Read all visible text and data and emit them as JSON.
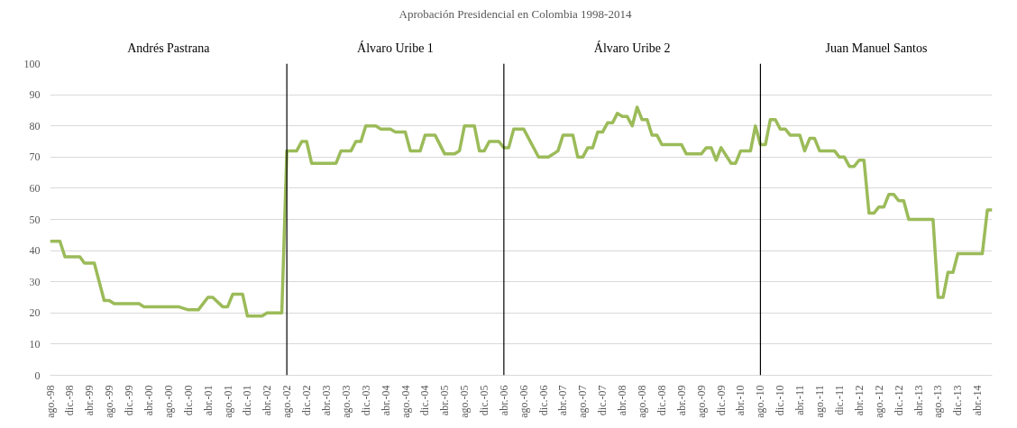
{
  "chart_data": {
    "type": "line",
    "title": "Aprobación  Presidencial  en  Colombia  1998-2014",
    "x": [
      "1998-08",
      "1998-10",
      "1998-11",
      "1999-02",
      "1999-03",
      "1999-05",
      "1999-07",
      "1999-08",
      "1999-09",
      "2000-02",
      "2000-03",
      "2000-10",
      "2000-12",
      "2001-02",
      "2001-04",
      "2001-05",
      "2001-07",
      "2001-08",
      "2001-09",
      "2001-11",
      "2001-12",
      "2002-03",
      "2002-04",
      "2002-07",
      "2002-08",
      "2002-10",
      "2002-11",
      "2002-12",
      "2003-01",
      "2003-06",
      "2003-07",
      "2003-09",
      "2003-10",
      "2003-11",
      "2003-12",
      "2004-02",
      "2004-03",
      "2004-05",
      "2004-06",
      "2004-08",
      "2004-09",
      "2004-11",
      "2004-12",
      "2005-02",
      "2005-04",
      "2005-06",
      "2005-07",
      "2005-08",
      "2005-10",
      "2005-11",
      "2005-12",
      "2006-01",
      "2006-03",
      "2006-04",
      "2006-05",
      "2006-06",
      "2006-08",
      "2006-11",
      "2007-01",
      "2007-02",
      "2007-03",
      "2007-04",
      "2007-06",
      "2007-07",
      "2007-08",
      "2007-09",
      "2007-10",
      "2007-11",
      "2007-12",
      "2008-01",
      "2008-02",
      "2008-03",
      "2008-04",
      "2008-05",
      "2008-06",
      "2008-07",
      "2008-08",
      "2008-09",
      "2008-10",
      "2008-11",
      "2008-12",
      "2009-04",
      "2009-05",
      "2009-08",
      "2009-09",
      "2009-10",
      "2009-11",
      "2009-12",
      "2010-02",
      "2010-03",
      "2010-04",
      "2010-06",
      "2010-07",
      "2010-08",
      "2010-09",
      "2010-10",
      "2010-11",
      "2010-12",
      "2011-01",
      "2011-02",
      "2011-04",
      "2011-05",
      "2011-06",
      "2011-07",
      "2011-08",
      "2011-11",
      "2011-12",
      "2012-01",
      "2012-02",
      "2012-03",
      "2012-04",
      "2012-05",
      "2012-06",
      "2012-07",
      "2012-08",
      "2012-09",
      "2012-10",
      "2012-11",
      "2012-12",
      "2013-01",
      "2013-02",
      "2013-07",
      "2013-08",
      "2013-09",
      "2013-10",
      "2013-11",
      "2013-12",
      "2014-05",
      "2014-06",
      "2014-07"
    ],
    "series": [
      {
        "color": "#9bbb59",
        "values": [
          43,
          43,
          38,
          38,
          36,
          36,
          24,
          24,
          23,
          23,
          22,
          22,
          21,
          21,
          25,
          25,
          22,
          22,
          26,
          26,
          19,
          19,
          20,
          20,
          72,
          72,
          75,
          75,
          68,
          68,
          72,
          72,
          75,
          75,
          80,
          80,
          79,
          79,
          78,
          78,
          72,
          72,
          77,
          77,
          71,
          71,
          72,
          80,
          80,
          72,
          72,
          75,
          75,
          73,
          73,
          79,
          79,
          70,
          70,
          71,
          72,
          77,
          77,
          70,
          70,
          73,
          73,
          78,
          78,
          81,
          81,
          84,
          83,
          83,
          80,
          86,
          82,
          82,
          77,
          77,
          74,
          74,
          71,
          71,
          73,
          73,
          69,
          73,
          68,
          68,
          72,
          72,
          80,
          74,
          74,
          82,
          82,
          79,
          79,
          77,
          77,
          72,
          76,
          76,
          72,
          72,
          70,
          70,
          67,
          67,
          69,
          69,
          52,
          52,
          54,
          54,
          58,
          58,
          56,
          56,
          50,
          50,
          25,
          25,
          33,
          33,
          39,
          39,
          53,
          53
        ]
      }
    ],
    "xlim": [
      "1998-08",
      "2014-07"
    ],
    "xticks": [
      {
        "value": "1998-08",
        "label": "ago.-98"
      },
      {
        "value": "1998-12",
        "label": "dic.-98"
      },
      {
        "value": "1999-04",
        "label": "abr.-99"
      },
      {
        "value": "1999-08",
        "label": "ago.-99"
      },
      {
        "value": "1999-12",
        "label": "dic.-99"
      },
      {
        "value": "2000-04",
        "label": "abr.-00"
      },
      {
        "value": "2000-08",
        "label": "ago.-00"
      },
      {
        "value": "2000-12",
        "label": "dic.-00"
      },
      {
        "value": "2001-04",
        "label": "abr.-01"
      },
      {
        "value": "2001-08",
        "label": "ago.-01"
      },
      {
        "value": "2001-12",
        "label": "dic.-01"
      },
      {
        "value": "2002-04",
        "label": "abr.-02"
      },
      {
        "value": "2002-08",
        "label": "ago.-02"
      },
      {
        "value": "2002-12",
        "label": "dic.-02"
      },
      {
        "value": "2003-04",
        "label": "abr.-03"
      },
      {
        "value": "2003-08",
        "label": "ago.-03"
      },
      {
        "value": "2003-12",
        "label": "dic.-03"
      },
      {
        "value": "2004-04",
        "label": "abr.-04"
      },
      {
        "value": "2004-08",
        "label": "ago.-04"
      },
      {
        "value": "2004-12",
        "label": "dic.-04"
      },
      {
        "value": "2005-04",
        "label": "abr.-05"
      },
      {
        "value": "2005-08",
        "label": "ago.-05"
      },
      {
        "value": "2005-12",
        "label": "dic.-05"
      },
      {
        "value": "2006-04",
        "label": "abr.-06"
      },
      {
        "value": "2006-08",
        "label": "ago.-06"
      },
      {
        "value": "2006-12",
        "label": "dic.-06"
      },
      {
        "value": "2007-04",
        "label": "abr.-07"
      },
      {
        "value": "2007-08",
        "label": "ago.-07"
      },
      {
        "value": "2007-12",
        "label": "dic.-07"
      },
      {
        "value": "2008-04",
        "label": "abr.-08"
      },
      {
        "value": "2008-08",
        "label": "ago.-08"
      },
      {
        "value": "2008-12",
        "label": "dic.-08"
      },
      {
        "value": "2009-04",
        "label": "abr.-09"
      },
      {
        "value": "2009-08",
        "label": "ago.-09"
      },
      {
        "value": "2009-12",
        "label": "dic.-09"
      },
      {
        "value": "2010-04",
        "label": "abr.-10"
      },
      {
        "value": "2010-08",
        "label": "ago.-10"
      },
      {
        "value": "2010-12",
        "label": "dic.-10"
      },
      {
        "value": "2011-04",
        "label": "abr.-11"
      },
      {
        "value": "2011-08",
        "label": "ago.-11"
      },
      {
        "value": "2011-12",
        "label": "dic.-11"
      },
      {
        "value": "2012-04",
        "label": "abr.-12"
      },
      {
        "value": "2012-08",
        "label": "ago.-12"
      },
      {
        "value": "2012-12",
        "label": "dic.-12"
      },
      {
        "value": "2013-04",
        "label": "abr.-13"
      },
      {
        "value": "2013-08",
        "label": "ago.-13"
      },
      {
        "value": "2013-12",
        "label": "dic.-13"
      },
      {
        "value": "2014-04",
        "label": "abr.-14"
      }
    ],
    "ylim": [
      0,
      100
    ],
    "yticks": [
      0,
      10,
      20,
      30,
      40,
      50,
      60,
      70,
      80,
      90,
      100
    ],
    "grid": "y",
    "marker": "none",
    "line_style": "solid",
    "ref_lines": [
      {
        "axis": "x",
        "value": "2002-08",
        "color": "#000000"
      },
      {
        "axis": "x",
        "value": "2006-04",
        "color": "#000000"
      },
      {
        "axis": "x",
        "value": "2010-08",
        "color": "#000000"
      }
    ],
    "annotations": [
      "Andrés Pastrana",
      "Álvaro Uribe 1",
      "Álvaro Uribe 2",
      "Juan Manuel Santos"
    ]
  }
}
